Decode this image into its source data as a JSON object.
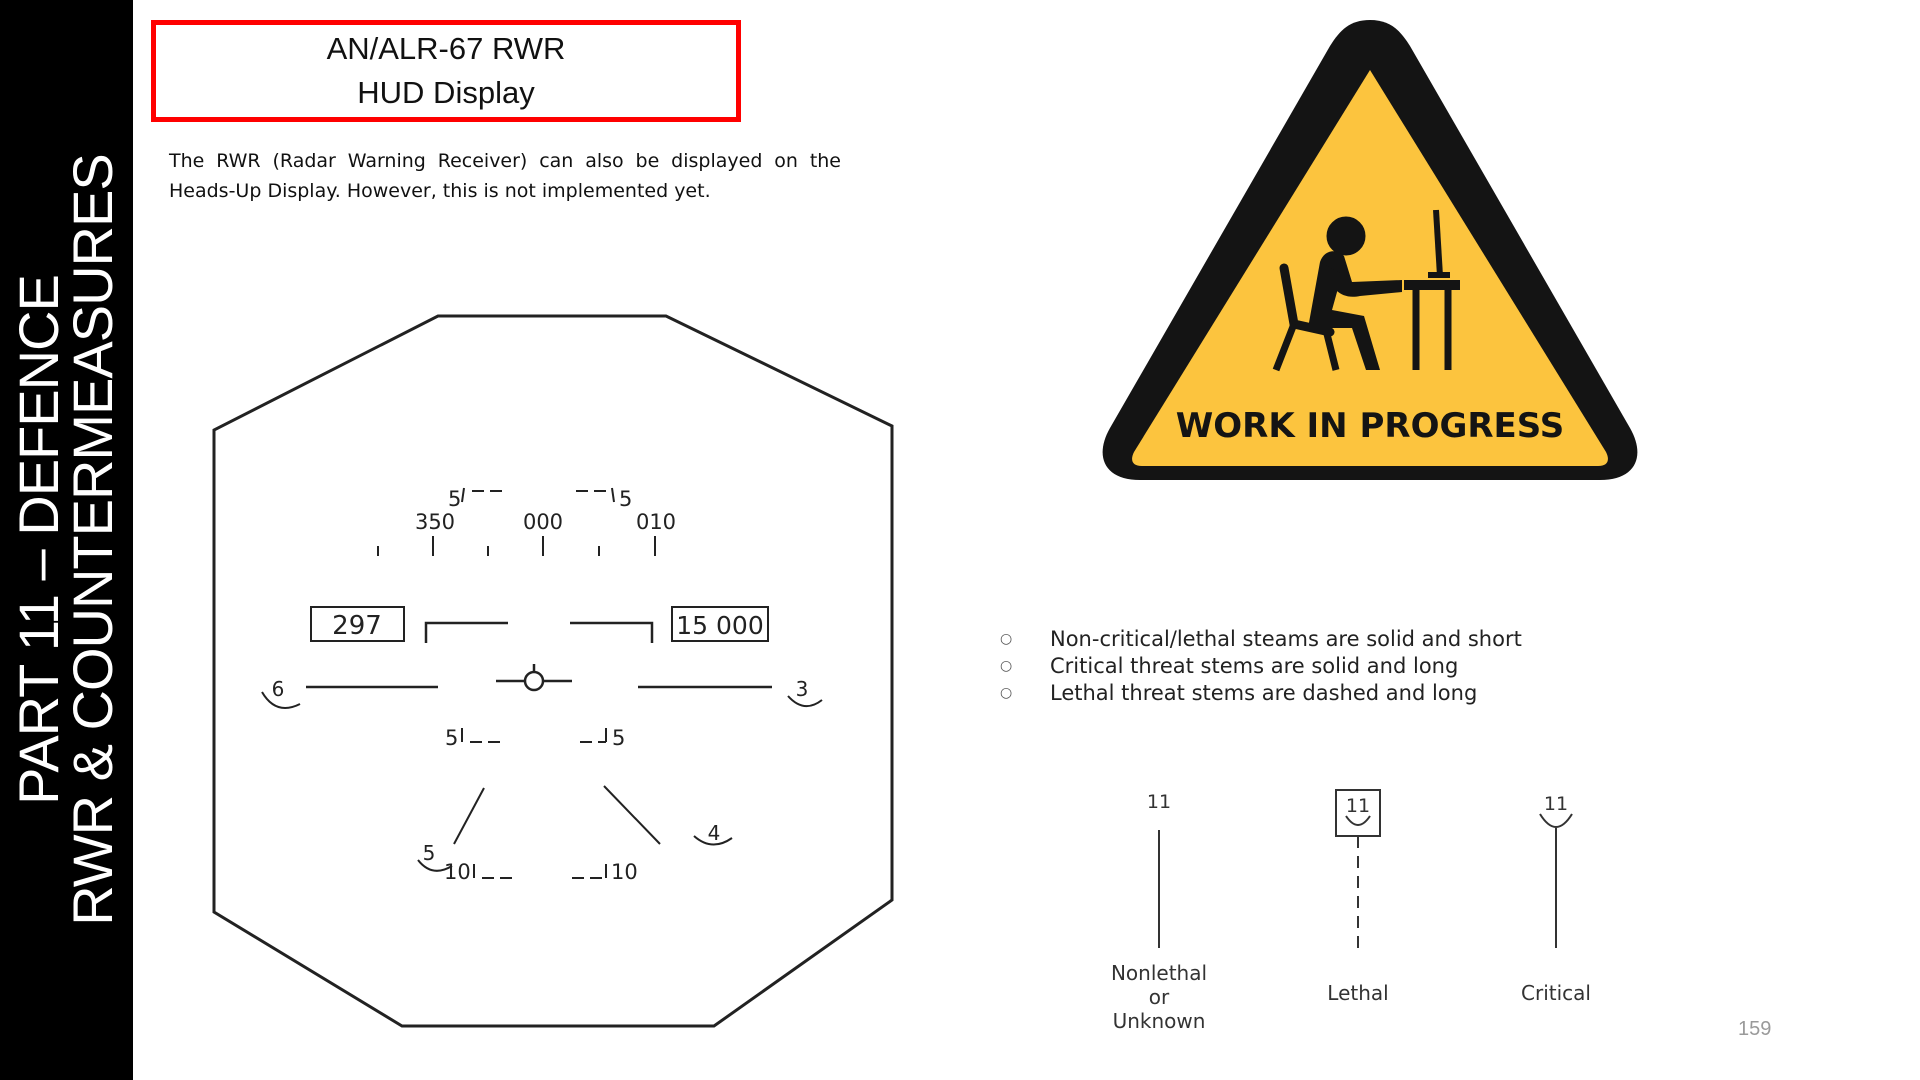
{
  "sidebar": {
    "line1": "PART 11 – DEFENCE",
    "line2": "RWR & COUNTERMEASURES"
  },
  "title": {
    "line1": "AN/ALR-67 RWR",
    "line2": "HUD Display"
  },
  "intro_text": "The RWR (Radar Warning Receiver) can also be displayed on the Heads-Up Display. However, this is not implemented yet.",
  "hud": {
    "heading_labels": [
      "350",
      "000",
      "010"
    ],
    "speed_value": "297",
    "altitude_value": "15 000",
    "threats": [
      {
        "label": "6"
      },
      {
        "label": "3"
      },
      {
        "label": "5"
      },
      {
        "label": "4"
      }
    ],
    "bracket_labels": {
      "upper_left": "5",
      "upper_right": "5",
      "middle_left": "5",
      "middle_right": "5",
      "lower_left": "10",
      "lower_right": "10"
    }
  },
  "wip_sign": {
    "text": "WORK IN PROGRESS",
    "fill_color": "#fcc43e",
    "border_color": "#141414"
  },
  "bullets": [
    "Non-critical/lethal steams are solid and short",
    "Critical threat stems are solid and long",
    "Lethal threat stems are dashed and long"
  ],
  "bullet_glyph": "○",
  "stems": [
    {
      "symbol": "11",
      "caption_lines": [
        "Nonlethal",
        "or",
        "Unknown"
      ]
    },
    {
      "symbol": "11",
      "caption_lines": [
        "Lethal"
      ]
    },
    {
      "symbol": "11",
      "caption_lines": [
        "Critical"
      ]
    }
  ],
  "page_number": "159",
  "colors": {
    "sidebar_bg": "#000000",
    "title_border": "#ff0000"
  }
}
